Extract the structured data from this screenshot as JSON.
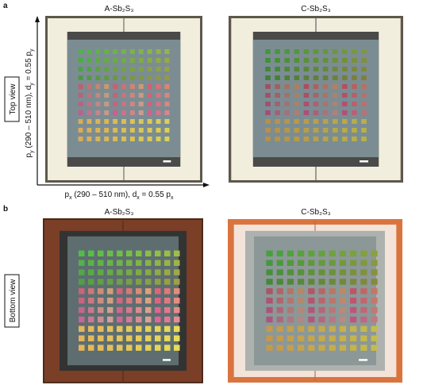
{
  "panel_a": {
    "letter": "a",
    "titles": [
      "A-Sb₂S₃",
      "C-Sb₂S₃"
    ],
    "view_label": "Top view",
    "x_label_parts": [
      "p",
      "x",
      " (290 – 510 nm), d",
      "x",
      " = 0.55 p",
      "x"
    ],
    "y_label_parts": [
      "p",
      "y",
      " (290 – 510 nm), d",
      "y",
      " = 0.55 p",
      "y"
    ]
  },
  "panel_b": {
    "letter": "b",
    "titles": [
      "A-Sb₂S₃",
      "C-Sb₂S₃"
    ],
    "view_label": "Bottom view"
  }
}
